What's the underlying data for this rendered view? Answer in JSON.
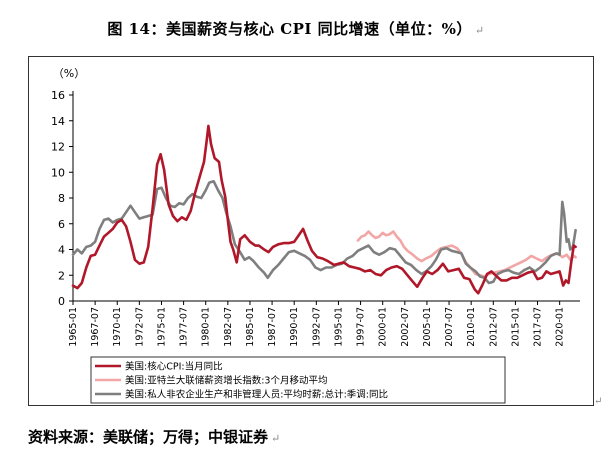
{
  "title": "图 14：美国薪资与核心 CPI 同比增速（单位：%）",
  "return_mark": "↵",
  "source": "资料来源：美联储；万得；中银证券",
  "colors": {
    "core_cpi": "#b0182a",
    "atlanta_wage": "#f2a6a6",
    "hourly_earnings": "#7f7f7f",
    "axis": "#000000"
  },
  "chart_data": {
    "type": "line",
    "unit_label": "（%）",
    "y_ticks": [
      0,
      2,
      4,
      6,
      8,
      10,
      12,
      14,
      16
    ],
    "ylim": [
      0,
      16
    ],
    "xlim": [
      1965.0,
      2022.3
    ],
    "x_tick_labels": [
      "1965-01",
      "1967-07",
      "1970-01",
      "1972-07",
      "1975-01",
      "1977-07",
      "1980-01",
      "1982-07",
      "1985-01",
      "1987-07",
      "1990-01",
      "1992-07",
      "1995-01",
      "1997-07",
      "2000-01",
      "2002-07",
      "2005-01",
      "2007-07",
      "2010-01",
      "2012-07",
      "2015-01",
      "2017-07",
      "2020-01"
    ],
    "x_tick_values": [
      1965.0,
      1967.5,
      1970.0,
      1972.5,
      1975.0,
      1977.5,
      1980.0,
      1982.5,
      1985.0,
      1987.5,
      1990.0,
      1992.5,
      1995.0,
      1997.5,
      2000.0,
      2002.5,
      2005.0,
      2007.5,
      2010.0,
      2012.5,
      2015.0,
      2017.5,
      2020.0
    ],
    "grid": false,
    "legend_position": "bottom",
    "series": [
      {
        "key": "core_cpi",
        "name": "美国:核心CPI:当月同比",
        "points": [
          [
            1965.0,
            1.2
          ],
          [
            1965.5,
            1.0
          ],
          [
            1966.0,
            1.4
          ],
          [
            1966.5,
            2.6
          ],
          [
            1967.0,
            3.5
          ],
          [
            1967.5,
            3.6
          ],
          [
            1968.0,
            4.3
          ],
          [
            1968.5,
            5.0
          ],
          [
            1969.0,
            5.3
          ],
          [
            1969.5,
            5.6
          ],
          [
            1970.0,
            6.1
          ],
          [
            1970.5,
            6.3
          ],
          [
            1971.0,
            5.8
          ],
          [
            1971.5,
            4.6
          ],
          [
            1972.0,
            3.2
          ],
          [
            1972.5,
            2.9
          ],
          [
            1973.0,
            3.0
          ],
          [
            1973.5,
            4.2
          ],
          [
            1974.0,
            7.2
          ],
          [
            1974.5,
            10.6
          ],
          [
            1974.9,
            11.4
          ],
          [
            1975.3,
            10.2
          ],
          [
            1975.8,
            7.5
          ],
          [
            1976.3,
            6.6
          ],
          [
            1976.8,
            6.2
          ],
          [
            1977.3,
            6.5
          ],
          [
            1977.8,
            6.3
          ],
          [
            1978.3,
            7.0
          ],
          [
            1978.8,
            8.4
          ],
          [
            1979.3,
            9.6
          ],
          [
            1979.8,
            10.8
          ],
          [
            1980.1,
            12.4
          ],
          [
            1980.3,
            13.6
          ],
          [
            1980.6,
            12.2
          ],
          [
            1981.0,
            11.1
          ],
          [
            1981.5,
            10.8
          ],
          [
            1981.8,
            9.4
          ],
          [
            1982.2,
            8.1
          ],
          [
            1982.5,
            6.3
          ],
          [
            1982.8,
            4.6
          ],
          [
            1983.1,
            4.0
          ],
          [
            1983.5,
            3.0
          ],
          [
            1983.9,
            4.8
          ],
          [
            1984.4,
            5.1
          ],
          [
            1985.0,
            4.6
          ],
          [
            1985.6,
            4.3
          ],
          [
            1986.0,
            4.3
          ],
          [
            1986.6,
            4.0
          ],
          [
            1987.1,
            3.8
          ],
          [
            1987.6,
            4.2
          ],
          [
            1988.2,
            4.4
          ],
          [
            1988.8,
            4.5
          ],
          [
            1989.4,
            4.5
          ],
          [
            1990.0,
            4.6
          ],
          [
            1990.6,
            5.2
          ],
          [
            1991.0,
            5.6
          ],
          [
            1991.5,
            4.7
          ],
          [
            1992.0,
            3.9
          ],
          [
            1992.6,
            3.4
          ],
          [
            1993.2,
            3.3
          ],
          [
            1993.8,
            3.1
          ],
          [
            1994.5,
            2.8
          ],
          [
            1995.0,
            2.9
          ],
          [
            1995.6,
            3.0
          ],
          [
            1996.2,
            2.7
          ],
          [
            1996.8,
            2.6
          ],
          [
            1997.4,
            2.5
          ],
          [
            1998.0,
            2.3
          ],
          [
            1998.6,
            2.4
          ],
          [
            1999.2,
            2.1
          ],
          [
            1999.8,
            2.0
          ],
          [
            2000.4,
            2.4
          ],
          [
            2001.0,
            2.6
          ],
          [
            2001.6,
            2.7
          ],
          [
            2002.2,
            2.5
          ],
          [
            2002.8,
            2.0
          ],
          [
            2003.4,
            1.5
          ],
          [
            2003.9,
            1.1
          ],
          [
            2004.5,
            1.8
          ],
          [
            2005.0,
            2.3
          ],
          [
            2005.6,
            2.1
          ],
          [
            2006.2,
            2.4
          ],
          [
            2006.8,
            2.9
          ],
          [
            2007.4,
            2.3
          ],
          [
            2008.0,
            2.4
          ],
          [
            2008.6,
            2.5
          ],
          [
            2009.2,
            1.8
          ],
          [
            2009.8,
            1.7
          ],
          [
            2010.4,
            0.9
          ],
          [
            2010.8,
            0.6
          ],
          [
            2011.3,
            1.3
          ],
          [
            2011.8,
            2.1
          ],
          [
            2012.3,
            2.3
          ],
          [
            2012.9,
            1.9
          ],
          [
            2013.4,
            1.6
          ],
          [
            2014.0,
            1.6
          ],
          [
            2014.6,
            1.8
          ],
          [
            2015.2,
            1.8
          ],
          [
            2015.8,
            2.0
          ],
          [
            2016.4,
            2.2
          ],
          [
            2017.0,
            2.3
          ],
          [
            2017.5,
            1.7
          ],
          [
            2018.0,
            1.8
          ],
          [
            2018.5,
            2.3
          ],
          [
            2019.0,
            2.1
          ],
          [
            2019.5,
            2.2
          ],
          [
            2020.0,
            2.3
          ],
          [
            2020.4,
            1.2
          ],
          [
            2020.7,
            1.6
          ],
          [
            2021.0,
            1.4
          ],
          [
            2021.3,
            3.0
          ],
          [
            2021.6,
            4.3
          ],
          [
            2021.8,
            4.2
          ]
        ]
      },
      {
        "key": "atlanta_wage",
        "name": "美国:亚特兰大联储薪资增长指数:3个月移动平均",
        "points": [
          [
            1997.2,
            4.7
          ],
          [
            1997.6,
            5.0
          ],
          [
            1998.0,
            5.1
          ],
          [
            1998.4,
            5.4
          ],
          [
            1998.8,
            5.1
          ],
          [
            1999.2,
            4.9
          ],
          [
            1999.6,
            5.0
          ],
          [
            2000.0,
            5.3
          ],
          [
            2000.4,
            5.1
          ],
          [
            2000.8,
            5.2
          ],
          [
            2001.2,
            5.4
          ],
          [
            2001.6,
            5.0
          ],
          [
            2002.0,
            4.7
          ],
          [
            2002.4,
            4.2
          ],
          [
            2002.8,
            3.9
          ],
          [
            2003.4,
            3.6
          ],
          [
            2003.9,
            3.3
          ],
          [
            2004.4,
            3.1
          ],
          [
            2004.9,
            3.3
          ],
          [
            2005.5,
            3.5
          ],
          [
            2006.0,
            3.8
          ],
          [
            2006.6,
            4.1
          ],
          [
            2007.2,
            4.2
          ],
          [
            2007.8,
            4.3
          ],
          [
            2008.4,
            4.1
          ],
          [
            2008.9,
            3.7
          ],
          [
            2009.4,
            3.0
          ],
          [
            2009.9,
            2.6
          ],
          [
            2010.5,
            2.1
          ],
          [
            2011.0,
            2.0
          ],
          [
            2011.5,
            1.9
          ],
          [
            2012.0,
            2.1
          ],
          [
            2012.6,
            2.2
          ],
          [
            2013.2,
            2.3
          ],
          [
            2013.8,
            2.4
          ],
          [
            2014.4,
            2.6
          ],
          [
            2015.0,
            2.8
          ],
          [
            2015.6,
            3.0
          ],
          [
            2016.2,
            3.2
          ],
          [
            2016.8,
            3.5
          ],
          [
            2017.4,
            3.3
          ],
          [
            2018.0,
            3.1
          ],
          [
            2018.6,
            3.4
          ],
          [
            2019.2,
            3.6
          ],
          [
            2019.8,
            3.7
          ],
          [
            2020.3,
            3.4
          ],
          [
            2020.8,
            3.6
          ],
          [
            2021.2,
            3.2
          ],
          [
            2021.6,
            3.5
          ],
          [
            2021.8,
            3.4
          ]
        ]
      },
      {
        "key": "hourly_earnings",
        "name": "美国:私人非农企业生产和非管理人员:平均时薪:总计:季调:同比",
        "points": [
          [
            1965.0,
            3.6
          ],
          [
            1965.5,
            4.0
          ],
          [
            1966.0,
            3.7
          ],
          [
            1966.5,
            4.2
          ],
          [
            1967.0,
            4.3
          ],
          [
            1967.5,
            4.6
          ],
          [
            1968.0,
            5.6
          ],
          [
            1968.5,
            6.3
          ],
          [
            1969.0,
            6.4
          ],
          [
            1969.5,
            6.1
          ],
          [
            1970.0,
            6.3
          ],
          [
            1970.5,
            6.4
          ],
          [
            1971.0,
            6.9
          ],
          [
            1971.5,
            7.4
          ],
          [
            1972.0,
            6.9
          ],
          [
            1972.5,
            6.4
          ],
          [
            1973.0,
            6.5
          ],
          [
            1973.5,
            6.6
          ],
          [
            1974.0,
            6.7
          ],
          [
            1974.5,
            8.7
          ],
          [
            1975.0,
            8.8
          ],
          [
            1975.5,
            8.0
          ],
          [
            1976.0,
            7.4
          ],
          [
            1976.5,
            7.3
          ],
          [
            1977.0,
            7.6
          ],
          [
            1977.5,
            7.5
          ],
          [
            1978.0,
            8.0
          ],
          [
            1978.5,
            8.3
          ],
          [
            1979.0,
            8.1
          ],
          [
            1979.5,
            8.0
          ],
          [
            1980.0,
            8.6
          ],
          [
            1980.4,
            9.2
          ],
          [
            1980.9,
            9.3
          ],
          [
            1981.4,
            8.6
          ],
          [
            1981.9,
            8.0
          ],
          [
            1982.3,
            6.9
          ],
          [
            1982.8,
            5.8
          ],
          [
            1983.3,
            4.4
          ],
          [
            1983.8,
            3.9
          ],
          [
            1984.4,
            3.2
          ],
          [
            1984.9,
            3.4
          ],
          [
            1985.4,
            3.1
          ],
          [
            1986.0,
            2.6
          ],
          [
            1986.6,
            2.2
          ],
          [
            1987.0,
            1.8
          ],
          [
            1987.6,
            2.4
          ],
          [
            1988.2,
            2.8
          ],
          [
            1988.8,
            3.3
          ],
          [
            1989.4,
            3.8
          ],
          [
            1990.0,
            3.9
          ],
          [
            1990.6,
            3.7
          ],
          [
            1991.2,
            3.5
          ],
          [
            1991.8,
            3.2
          ],
          [
            1992.4,
            2.6
          ],
          [
            1993.0,
            2.4
          ],
          [
            1993.6,
            2.6
          ],
          [
            1994.2,
            2.6
          ],
          [
            1994.8,
            2.8
          ],
          [
            1995.4,
            2.9
          ],
          [
            1996.0,
            3.3
          ],
          [
            1996.6,
            3.5
          ],
          [
            1997.2,
            3.9
          ],
          [
            1997.8,
            4.1
          ],
          [
            1998.4,
            4.3
          ],
          [
            1999.0,
            3.8
          ],
          [
            1999.6,
            3.6
          ],
          [
            2000.2,
            3.8
          ],
          [
            2000.8,
            4.1
          ],
          [
            2001.4,
            4.0
          ],
          [
            2002.0,
            3.5
          ],
          [
            2002.6,
            3.0
          ],
          [
            2003.2,
            2.8
          ],
          [
            2003.8,
            2.4
          ],
          [
            2004.4,
            2.1
          ],
          [
            2004.9,
            2.3
          ],
          [
            2005.5,
            2.7
          ],
          [
            2006.0,
            3.2
          ],
          [
            2006.6,
            4.0
          ],
          [
            2007.2,
            4.1
          ],
          [
            2007.8,
            3.9
          ],
          [
            2008.4,
            3.8
          ],
          [
            2008.9,
            3.7
          ],
          [
            2009.4,
            2.9
          ],
          [
            2009.9,
            2.6
          ],
          [
            2010.5,
            2.3
          ],
          [
            2011.0,
            1.9
          ],
          [
            2011.5,
            1.8
          ],
          [
            2012.0,
            1.4
          ],
          [
            2012.5,
            1.5
          ],
          [
            2013.0,
            2.1
          ],
          [
            2013.6,
            2.3
          ],
          [
            2014.2,
            2.4
          ],
          [
            2014.8,
            2.2
          ],
          [
            2015.4,
            2.1
          ],
          [
            2016.0,
            2.4
          ],
          [
            2016.6,
            2.6
          ],
          [
            2017.2,
            2.3
          ],
          [
            2017.8,
            2.6
          ],
          [
            2018.4,
            3.0
          ],
          [
            2019.0,
            3.5
          ],
          [
            2019.6,
            3.7
          ],
          [
            2020.0,
            3.6
          ],
          [
            2020.3,
            7.7
          ],
          [
            2020.5,
            6.8
          ],
          [
            2020.8,
            4.6
          ],
          [
            2021.0,
            4.8
          ],
          [
            2021.2,
            4.0
          ],
          [
            2021.5,
            4.2
          ],
          [
            2021.8,
            5.5
          ]
        ]
      }
    ]
  }
}
